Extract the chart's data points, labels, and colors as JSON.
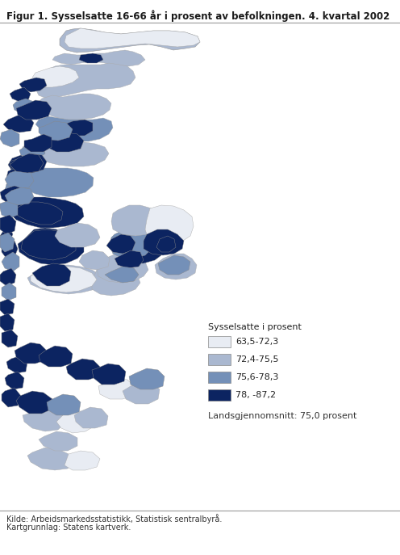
{
  "title": "Figur 1. Sysselsatte 16-66 år i prosent av befolkningen. 4. kvartal 2002",
  "legend_title": "Sysselsatte i prosent",
  "legend_entries": [
    {
      "label": "63,5-72,3",
      "color": "#e8ecf3"
    },
    {
      "label": "72,4-75,5",
      "color": "#aab8d0"
    },
    {
      "label": "75,6-78,3",
      "color": "#7490b8"
    },
    {
      "label": "78, -87,2",
      "color": "#0c2461"
    }
  ],
  "national_avg": "Landsgjennomsnitt: 75,0 prosent",
  "source_line1": "Kilde: Arbeidsmarkedsstatistikk, Statistisk sentralbyrå.",
  "source_line2": "Kartgrunnlag: Statens kartverk.",
  "bg_color": "#ffffff",
  "title_fontsize": 8.5,
  "legend_title_fontsize": 8.0,
  "legend_fontsize": 8.0,
  "source_fontsize": 7.0,
  "fig_width": 4.96,
  "fig_height": 6.87,
  "dpi": 100
}
